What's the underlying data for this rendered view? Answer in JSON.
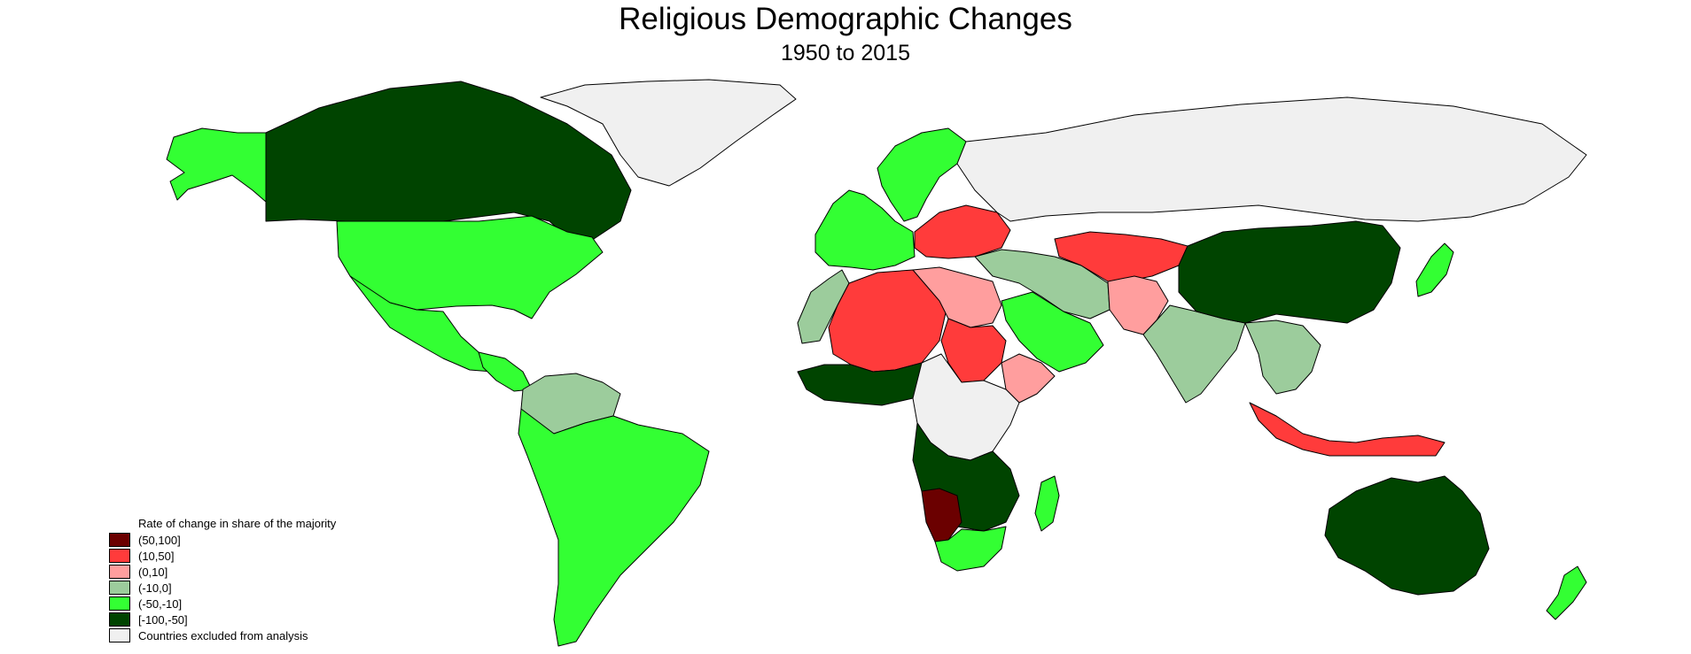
{
  "title": "Religious Demographic Changes",
  "subtitle": "1950 to 2015",
  "legend": {
    "title": "Rate of change in share of the majority",
    "items": [
      {
        "label": "(50,100]",
        "color": "#6b0000"
      },
      {
        "label": "(10,50]",
        "color": "#ff3b3b"
      },
      {
        "label": "(0,10]",
        "color": "#ff9e9e"
      },
      {
        "label": "(-10,0]",
        "color": "#9ccc9c"
      },
      {
        "label": "(-50,-10]",
        "color": "#33ff33"
      },
      {
        "label": "[-100,-50]",
        "color": "#004400"
      },
      {
        "label": "Countries excluded from analysis",
        "color": "#f0f0f0"
      }
    ]
  },
  "regions": [
    {
      "name": "alaska",
      "class": "(-50,-10]"
    },
    {
      "name": "canada",
      "class": "[-100,-50]"
    },
    {
      "name": "usa",
      "class": "(-50,-10]"
    },
    {
      "name": "mexico",
      "class": "(-50,-10]"
    },
    {
      "name": "central-america",
      "class": "(-50,-10]"
    },
    {
      "name": "colombia-venezuela",
      "class": "(-10,0]"
    },
    {
      "name": "south-america",
      "class": "(-50,-10]"
    },
    {
      "name": "greenland",
      "class": "Countries excluded from analysis"
    },
    {
      "name": "russia",
      "class": "Countries excluded from analysis"
    },
    {
      "name": "scandinavia",
      "class": "(-50,-10]"
    },
    {
      "name": "western-europe",
      "class": "(-50,-10]"
    },
    {
      "name": "eastern-europe",
      "class": "(10,50]"
    },
    {
      "name": "turkey-iran",
      "class": "(-10,0]"
    },
    {
      "name": "central-asia",
      "class": "(10,50]"
    },
    {
      "name": "saudi-arabia",
      "class": "(-50,-10]"
    },
    {
      "name": "afghanistan-pakistan",
      "class": "(0,10]"
    },
    {
      "name": "india",
      "class": "(-10,0]"
    },
    {
      "name": "china",
      "class": "[-100,-50]"
    },
    {
      "name": "japan",
      "class": "(-50,-10]"
    },
    {
      "name": "southeast-asia",
      "class": "(-10,0]"
    },
    {
      "name": "indonesia",
      "class": "(10,50]"
    },
    {
      "name": "australia",
      "class": "[-100,-50]"
    },
    {
      "name": "new-zealand",
      "class": "(-50,-10]"
    },
    {
      "name": "morocco-west-sahara",
      "class": "(-10,0]"
    },
    {
      "name": "algeria-mali-niger",
      "class": "(10,50]"
    },
    {
      "name": "libya-egypt",
      "class": "(0,10]"
    },
    {
      "name": "sudan",
      "class": "(10,50]"
    },
    {
      "name": "west-africa",
      "class": "[-100,-50]"
    },
    {
      "name": "central-africa",
      "class": "Countries excluded from analysis"
    },
    {
      "name": "southern-africa",
      "class": "[-100,-50]"
    },
    {
      "name": "namibia",
      "class": "(50,100]"
    },
    {
      "name": "south-africa",
      "class": "(-50,-10]"
    },
    {
      "name": "madagascar",
      "class": "(-50,-10]"
    },
    {
      "name": "horn-of-africa",
      "class": "(0,10]"
    }
  ]
}
